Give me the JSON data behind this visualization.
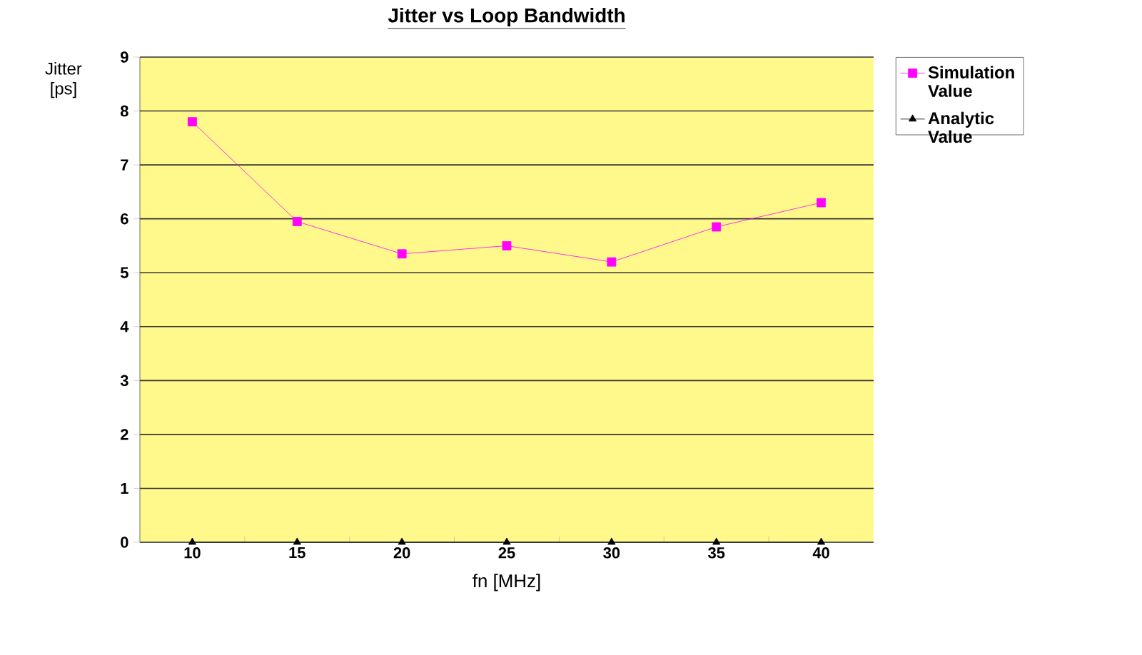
{
  "chart_data": {
    "type": "line",
    "title": "Jitter vs Loop Bandwidth",
    "xlabel": "fn [MHz]",
    "ylabel": "Jitter [ps]",
    "categories": [
      "10",
      "15",
      "20",
      "25",
      "30",
      "35",
      "40"
    ],
    "series": [
      {
        "name": "Simulation Value",
        "color": "#ff00ff",
        "marker": "square",
        "values": [
          7.8,
          5.95,
          5.35,
          5.5,
          5.2,
          5.85,
          6.3
        ]
      },
      {
        "name": "Analytic Value",
        "color": "#000000",
        "marker": "triangle",
        "values": [
          0,
          0,
          0,
          0,
          0,
          0,
          0
        ]
      }
    ],
    "ylim": [
      0,
      9
    ],
    "yticks": [
      0,
      1,
      2,
      3,
      4,
      5,
      6,
      7,
      8,
      9
    ],
    "grid": "y",
    "legend": "right",
    "line_style": "solid"
  }
}
